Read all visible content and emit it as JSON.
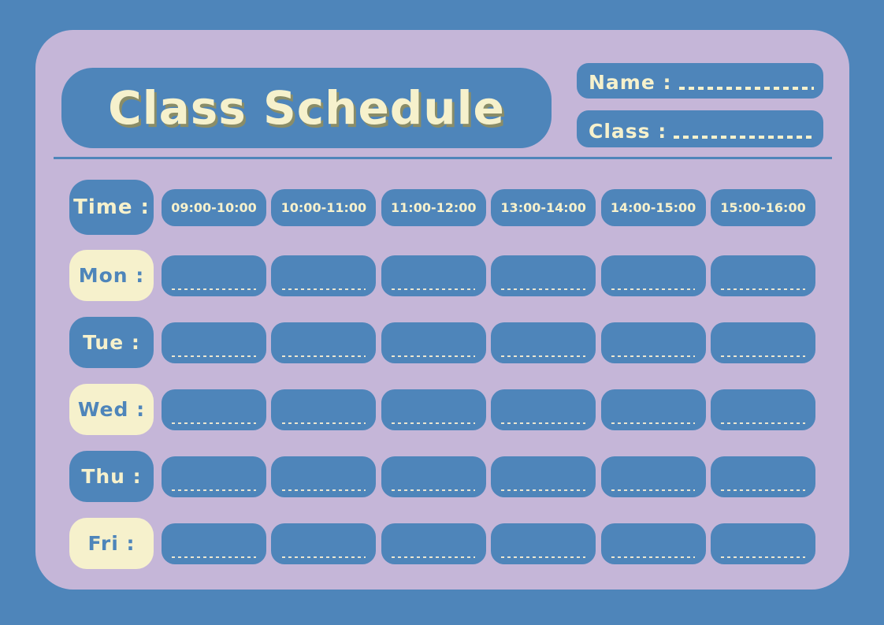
{
  "colors": {
    "blue": "#4e85ba",
    "panel": "#c5b6d8",
    "cream": "#f6f1cc",
    "title_shadow": "#8a8d68",
    "cell_dash": "#e9e5d0"
  },
  "header": {
    "title": "Class Schedule",
    "name_label": "Name :",
    "class_label": "Class :"
  },
  "schedule": {
    "time_label": "Time :",
    "time_slots": [
      "09:00-10:00",
      "10:00-11:00",
      "11:00-12:00",
      "13:00-14:00",
      "14:00-15:00",
      "15:00-16:00"
    ],
    "days": [
      {
        "label": "Mon :",
        "style": "cream"
      },
      {
        "label": "Tue :",
        "style": "blue"
      },
      {
        "label": "Wed :",
        "style": "cream"
      },
      {
        "label": "Thu :",
        "style": "blue"
      },
      {
        "label": "Fri :",
        "style": "cream"
      }
    ]
  }
}
